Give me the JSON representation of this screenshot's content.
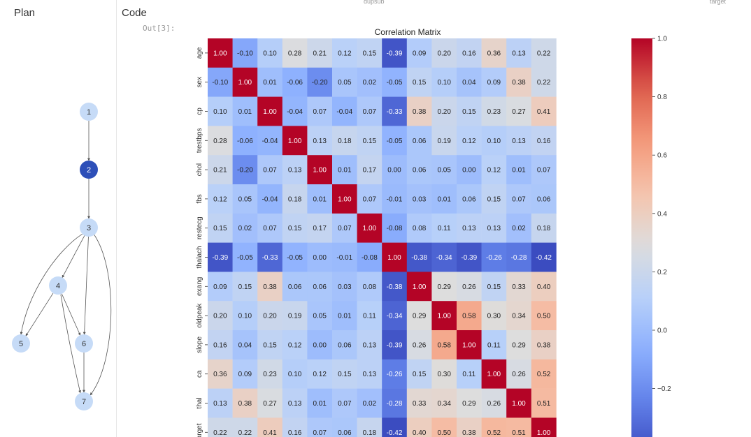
{
  "panels": {
    "plan_title": "Plan",
    "code_title": "Code",
    "clipped_text_1": "dupsub",
    "clipped_text_2": "target"
  },
  "cell": {
    "out_label": "Out[3]:"
  },
  "plan_graph": {
    "nodes": [
      {
        "id": "1",
        "label": "1",
        "active": false
      },
      {
        "id": "2",
        "label": "2",
        "active": true
      },
      {
        "id": "3",
        "label": "3",
        "active": false
      },
      {
        "id": "4",
        "label": "4",
        "active": false
      },
      {
        "id": "5",
        "label": "5",
        "active": false
      },
      {
        "id": "6",
        "label": "6",
        "active": false
      },
      {
        "id": "7",
        "label": "7",
        "active": false
      }
    ],
    "edges": [
      [
        "1",
        "2"
      ],
      [
        "2",
        "3"
      ],
      [
        "3",
        "4"
      ],
      [
        "3",
        "5"
      ],
      [
        "3",
        "6"
      ],
      [
        "3",
        "7"
      ],
      [
        "4",
        "5"
      ],
      [
        "4",
        "6"
      ],
      [
        "4",
        "7"
      ],
      [
        "6",
        "7"
      ]
    ],
    "colors": {
      "node": "#c6dbf7",
      "active": "#2d4fb8",
      "edge": "#555555"
    }
  },
  "chart_data": {
    "type": "heatmap",
    "title": "Correlation Matrix",
    "xlabel": "",
    "ylabel": "",
    "row_labels": [
      "age",
      "sex",
      "cp",
      "trestbps",
      "chol",
      "fbs",
      "restecg",
      "thalach",
      "exang",
      "oldpeak",
      "slope",
      "ca",
      "thal",
      "target"
    ],
    "values": [
      [
        1.0,
        -0.1,
        0.1,
        0.28,
        0.21,
        0.12,
        0.15,
        -0.39,
        0.09,
        0.2,
        0.16,
        0.36,
        0.13,
        0.22
      ],
      [
        -0.1,
        1.0,
        0.01,
        -0.06,
        -0.2,
        0.05,
        0.02,
        -0.05,
        0.15,
        0.1,
        0.04,
        0.09,
        0.38,
        0.22
      ],
      [
        0.1,
        0.01,
        1.0,
        -0.04,
        0.07,
        -0.04,
        0.07,
        -0.33,
        0.38,
        0.2,
        0.15,
        0.23,
        0.27,
        0.41
      ],
      [
        0.28,
        -0.06,
        -0.04,
        1.0,
        0.13,
        0.18,
        0.15,
        -0.05,
        0.06,
        0.19,
        0.12,
        0.1,
        0.13,
        0.16
      ],
      [
        0.21,
        -0.2,
        0.07,
        0.13,
        1.0,
        0.01,
        0.17,
        -0.0,
        0.06,
        0.05,
        -0.0,
        0.12,
        0.01,
        0.07
      ],
      [
        0.12,
        0.05,
        -0.04,
        0.18,
        0.01,
        1.0,
        0.07,
        -0.01,
        0.03,
        0.01,
        0.06,
        0.15,
        0.07,
        0.06
      ],
      [
        0.15,
        0.02,
        0.07,
        0.15,
        0.17,
        0.07,
        1.0,
        -0.08,
        0.08,
        0.11,
        0.13,
        0.13,
        0.02,
        0.18
      ],
      [
        -0.39,
        -0.05,
        -0.33,
        -0.05,
        -0.0,
        -0.01,
        -0.08,
        1.0,
        -0.38,
        -0.34,
        -0.39,
        -0.26,
        -0.28,
        -0.42
      ],
      [
        0.09,
        0.15,
        0.38,
        0.06,
        0.06,
        0.03,
        0.08,
        -0.38,
        1.0,
        0.29,
        0.26,
        0.15,
        0.33,
        0.4
      ],
      [
        0.2,
        0.1,
        0.2,
        0.19,
        0.05,
        0.01,
        0.11,
        -0.34,
        0.29,
        1.0,
        0.58,
        0.3,
        0.34,
        0.5
      ],
      [
        0.16,
        0.04,
        0.15,
        0.12,
        -0.0,
        0.06,
        0.13,
        -0.39,
        0.26,
        0.58,
        1.0,
        0.11,
        0.29,
        0.38
      ],
      [
        0.36,
        0.09,
        0.23,
        0.1,
        0.12,
        0.15,
        0.13,
        -0.26,
        0.15,
        0.3,
        0.11,
        1.0,
        0.26,
        0.52
      ],
      [
        0.13,
        0.38,
        0.27,
        0.13,
        0.01,
        0.07,
        0.02,
        -0.28,
        0.33,
        0.34,
        0.29,
        0.26,
        1.0,
        0.51
      ],
      [
        0.22,
        0.22,
        0.41,
        0.16,
        0.07,
        0.06,
        0.18,
        -0.42,
        0.4,
        0.5,
        0.38,
        0.52,
        0.51,
        1.0
      ]
    ],
    "colormap": "coolwarm",
    "color_range": [
      -0.42,
      1.0
    ],
    "colorbar_ticks": [
      "1.0",
      "0.8",
      "0.6",
      "0.4",
      "0.2",
      "0.0",
      "−0.2"
    ],
    "colorbar_tick_values": [
      1.0,
      0.8,
      0.6,
      0.4,
      0.2,
      0.0,
      -0.2
    ],
    "annotation_format": "2 decimals"
  }
}
